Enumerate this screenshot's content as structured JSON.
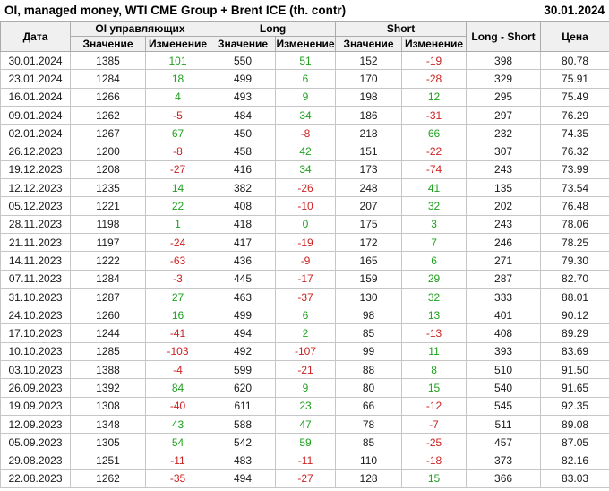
{
  "title": "OI, managed money, WTI CME Group + Brent ICE (th. contr)",
  "report_date": "30.01.2024",
  "colors": {
    "positive": "#1ea11e",
    "negative": "#cc2222",
    "header_bg": "#f0f0f0",
    "border": "#c6c6c6"
  },
  "table": {
    "header": {
      "date": "Дата",
      "oi_group": "OI управляющих",
      "long_group": "Long",
      "short_group": "Short",
      "long_short": "Long - Short",
      "price": "Цена",
      "value_label": "Значение",
      "change_label": "Изменение"
    },
    "rows": [
      {
        "date": "30.01.2024",
        "oi": 1385,
        "oi_chg": 101,
        "long": 550,
        "long_chg": 51,
        "short": 152,
        "short_chg": -19,
        "long_short": 398,
        "price": "80.78"
      },
      {
        "date": "23.01.2024",
        "oi": 1284,
        "oi_chg": 18,
        "long": 499,
        "long_chg": 6,
        "short": 170,
        "short_chg": -28,
        "long_short": 329,
        "price": "75.91"
      },
      {
        "date": "16.01.2024",
        "oi": 1266,
        "oi_chg": 4,
        "long": 493,
        "long_chg": 9,
        "short": 198,
        "short_chg": 12,
        "long_short": 295,
        "price": "75.49"
      },
      {
        "date": "09.01.2024",
        "oi": 1262,
        "oi_chg": -5,
        "long": 484,
        "long_chg": 34,
        "short": 186,
        "short_chg": -31,
        "long_short": 297,
        "price": "76.29"
      },
      {
        "date": "02.01.2024",
        "oi": 1267,
        "oi_chg": 67,
        "long": 450,
        "long_chg": -8,
        "short": 218,
        "short_chg": 66,
        "long_short": 232,
        "price": "74.35"
      },
      {
        "date": "26.12.2023",
        "oi": 1200,
        "oi_chg": -8,
        "long": 458,
        "long_chg": 42,
        "short": 151,
        "short_chg": -22,
        "long_short": 307,
        "price": "76.32"
      },
      {
        "date": "19.12.2023",
        "oi": 1208,
        "oi_chg": -27,
        "long": 416,
        "long_chg": 34,
        "short": 173,
        "short_chg": -74,
        "long_short": 243,
        "price": "73.99"
      },
      {
        "date": "12.12.2023",
        "oi": 1235,
        "oi_chg": 14,
        "long": 382,
        "long_chg": -26,
        "short": 248,
        "short_chg": 41,
        "long_short": 135,
        "price": "73.54"
      },
      {
        "date": "05.12.2023",
        "oi": 1221,
        "oi_chg": 22,
        "long": 408,
        "long_chg": -10,
        "short": 207,
        "short_chg": 32,
        "long_short": 202,
        "price": "76.48"
      },
      {
        "date": "28.11.2023",
        "oi": 1198,
        "oi_chg": 1,
        "long": 418,
        "long_chg": 0,
        "short": 175,
        "short_chg": 3,
        "long_short": 243,
        "price": "78.06"
      },
      {
        "date": "21.11.2023",
        "oi": 1197,
        "oi_chg": -24,
        "long": 417,
        "long_chg": -19,
        "short": 172,
        "short_chg": 7,
        "long_short": 246,
        "price": "78.25"
      },
      {
        "date": "14.11.2023",
        "oi": 1222,
        "oi_chg": -63,
        "long": 436,
        "long_chg": -9,
        "short": 165,
        "short_chg": 6,
        "long_short": 271,
        "price": "79.30"
      },
      {
        "date": "07.11.2023",
        "oi": 1284,
        "oi_chg": -3,
        "long": 445,
        "long_chg": -17,
        "short": 159,
        "short_chg": 29,
        "long_short": 287,
        "price": "82.70"
      },
      {
        "date": "31.10.2023",
        "oi": 1287,
        "oi_chg": 27,
        "long": 463,
        "long_chg": -37,
        "short": 130,
        "short_chg": 32,
        "long_short": 333,
        "price": "88.01"
      },
      {
        "date": "24.10.2023",
        "oi": 1260,
        "oi_chg": 16,
        "long": 499,
        "long_chg": 6,
        "short": 98,
        "short_chg": 13,
        "long_short": 401,
        "price": "90.12"
      },
      {
        "date": "17.10.2023",
        "oi": 1244,
        "oi_chg": -41,
        "long": 494,
        "long_chg": 2,
        "short": 85,
        "short_chg": -13,
        "long_short": 408,
        "price": "89.29"
      },
      {
        "date": "10.10.2023",
        "oi": 1285,
        "oi_chg": -103,
        "long": 492,
        "long_chg": -107,
        "short": 99,
        "short_chg": 11,
        "long_short": 393,
        "price": "83.69"
      },
      {
        "date": "03.10.2023",
        "oi": 1388,
        "oi_chg": -4,
        "long": 599,
        "long_chg": -21,
        "short": 88,
        "short_chg": 8,
        "long_short": 510,
        "price": "91.50"
      },
      {
        "date": "26.09.2023",
        "oi": 1392,
        "oi_chg": 84,
        "long": 620,
        "long_chg": 9,
        "short": 80,
        "short_chg": 15,
        "long_short": 540,
        "price": "91.65"
      },
      {
        "date": "19.09.2023",
        "oi": 1308,
        "oi_chg": -40,
        "long": 611,
        "long_chg": 23,
        "short": 66,
        "short_chg": -12,
        "long_short": 545,
        "price": "92.35"
      },
      {
        "date": "12.09.2023",
        "oi": 1348,
        "oi_chg": 43,
        "long": 588,
        "long_chg": 47,
        "short": 78,
        "short_chg": -7,
        "long_short": 511,
        "price": "89.08"
      },
      {
        "date": "05.09.2023",
        "oi": 1305,
        "oi_chg": 54,
        "long": 542,
        "long_chg": 59,
        "short": 85,
        "short_chg": -25,
        "long_short": 457,
        "price": "87.05"
      },
      {
        "date": "29.08.2023",
        "oi": 1251,
        "oi_chg": -11,
        "long": 483,
        "long_chg": -11,
        "short": 110,
        "short_chg": -18,
        "long_short": 373,
        "price": "82.16"
      },
      {
        "date": "22.08.2023",
        "oi": 1262,
        "oi_chg": -35,
        "long": 494,
        "long_chg": -27,
        "short": 128,
        "short_chg": 15,
        "long_short": 366,
        "price": "83.03"
      }
    ]
  },
  "chart_data": {
    "type": "table",
    "title": "OI, managed money, WTI CME Group + Brent ICE (th. contr)",
    "as_of_date": "30.01.2024",
    "columns": [
      "Дата",
      "OI управляющих Значение",
      "OI управляющих Изменение",
      "Long Значение",
      "Long Изменение",
      "Short Значение",
      "Short Изменение",
      "Long - Short",
      "Цена"
    ],
    "rows": [
      [
        "30.01.2024",
        1385,
        101,
        550,
        51,
        152,
        -19,
        398,
        80.78
      ],
      [
        "23.01.2024",
        1284,
        18,
        499,
        6,
        170,
        -28,
        329,
        75.91
      ],
      [
        "16.01.2024",
        1266,
        4,
        493,
        9,
        198,
        12,
        295,
        75.49
      ],
      [
        "09.01.2024",
        1262,
        -5,
        484,
        34,
        186,
        -31,
        297,
        76.29
      ],
      [
        "02.01.2024",
        1267,
        67,
        450,
        -8,
        218,
        66,
        232,
        74.35
      ],
      [
        "26.12.2023",
        1200,
        -8,
        458,
        42,
        151,
        -22,
        307,
        76.32
      ],
      [
        "19.12.2023",
        1208,
        -27,
        416,
        34,
        173,
        -74,
        243,
        73.99
      ],
      [
        "12.12.2023",
        1235,
        14,
        382,
        -26,
        248,
        41,
        135,
        73.54
      ],
      [
        "05.12.2023",
        1221,
        22,
        408,
        -10,
        207,
        32,
        202,
        76.48
      ],
      [
        "28.11.2023",
        1198,
        1,
        418,
        0,
        175,
        3,
        243,
        78.06
      ],
      [
        "21.11.2023",
        1197,
        -24,
        417,
        -19,
        172,
        7,
        246,
        78.25
      ],
      [
        "14.11.2023",
        1222,
        -63,
        436,
        -9,
        165,
        6,
        271,
        79.3
      ],
      [
        "07.11.2023",
        1284,
        -3,
        445,
        -17,
        159,
        29,
        287,
        82.7
      ],
      [
        "31.10.2023",
        1287,
        27,
        463,
        -37,
        130,
        32,
        333,
        88.01
      ],
      [
        "24.10.2023",
        1260,
        16,
        499,
        6,
        98,
        13,
        401,
        90.12
      ],
      [
        "17.10.2023",
        1244,
        -41,
        494,
        2,
        85,
        -13,
        408,
        89.29
      ],
      [
        "10.10.2023",
        1285,
        -103,
        492,
        -107,
        99,
        11,
        393,
        83.69
      ],
      [
        "03.10.2023",
        1388,
        -4,
        599,
        -21,
        88,
        8,
        510,
        91.5
      ],
      [
        "26.09.2023",
        1392,
        84,
        620,
        9,
        80,
        15,
        540,
        91.65
      ],
      [
        "19.09.2023",
        1308,
        -40,
        611,
        23,
        66,
        -12,
        545,
        92.35
      ],
      [
        "12.09.2023",
        1348,
        43,
        588,
        47,
        78,
        -7,
        511,
        89.08
      ],
      [
        "05.09.2023",
        1305,
        54,
        542,
        59,
        85,
        -25,
        457,
        87.05
      ],
      [
        "29.08.2023",
        1251,
        -11,
        483,
        -11,
        110,
        -18,
        373,
        82.16
      ],
      [
        "22.08.2023",
        1262,
        -35,
        494,
        -27,
        128,
        15,
        366,
        83.03
      ]
    ],
    "notes": "Change columns colored green when >= 0, red when < 0"
  }
}
